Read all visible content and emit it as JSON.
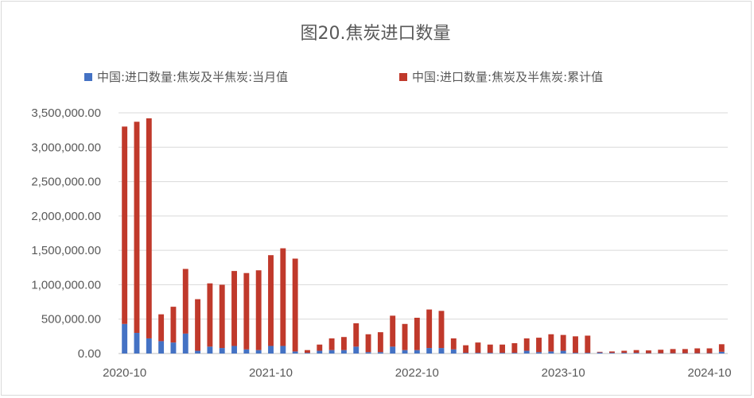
{
  "chart_data": {
    "type": "bar",
    "stacked": true,
    "title": "图20.焦炭进口数量",
    "legend_position": "top",
    "grid": true,
    "ylim": [
      0,
      3500000
    ],
    "y_ticks": [
      "3,500,000.00",
      "3,000,000.00",
      "2,500,000.00",
      "2,000,000.00",
      "1,500,000.00",
      "1,000,000.00",
      "500,000.00",
      "0.00"
    ],
    "y_tick_values": [
      3500000,
      3000000,
      2500000,
      2000000,
      1500000,
      1000000,
      500000,
      0
    ],
    "x_tick_labels": [
      "2020-10",
      "2021-10",
      "2022-10",
      "2023-10",
      "2024-10"
    ],
    "x_tick_indices": [
      0,
      12,
      24,
      36,
      48
    ],
    "categories": [
      "2020-10",
      "2020-11",
      "2020-12",
      "2021-01",
      "2021-02",
      "2021-03",
      "2021-04",
      "2021-05",
      "2021-06",
      "2021-07",
      "2021-08",
      "2021-09",
      "2021-10",
      "2021-11",
      "2021-12",
      "2022-01",
      "2022-02",
      "2022-03",
      "2022-04",
      "2022-05",
      "2022-06",
      "2022-07",
      "2022-08",
      "2022-09",
      "2022-10",
      "2022-11",
      "2022-12",
      "2023-01",
      "2023-02",
      "2023-03",
      "2023-04",
      "2023-05",
      "2023-06",
      "2023-07",
      "2023-08",
      "2023-09",
      "2023-10",
      "2023-11",
      "2023-12",
      "2024-01",
      "2024-02",
      "2024-03",
      "2024-04",
      "2024-05",
      "2024-06",
      "2024-07",
      "2024-08",
      "2024-09",
      "2024-10",
      "2024-11"
    ],
    "series": [
      {
        "name": "中国:进口数量:焦炭及半焦炭:当月值",
        "color": "#4472c4",
        "values": [
          430000,
          300000,
          220000,
          180000,
          160000,
          290000,
          40000,
          100000,
          80000,
          110000,
          60000,
          50000,
          110000,
          110000,
          30000,
          10000,
          40000,
          50000,
          50000,
          100000,
          20000,
          20000,
          100000,
          50000,
          50000,
          80000,
          80000,
          60000,
          10000,
          10000,
          10000,
          10000,
          10000,
          40000,
          20000,
          30000,
          40000,
          10000,
          10000,
          15000,
          10000,
          10000,
          10000,
          5000,
          5000,
          5000,
          5000,
          5000,
          5000,
          25000
        ]
      },
      {
        "name": "中国:进口数量:焦炭及半焦炭:累计值",
        "color": "#c0392b",
        "values": [
          2870000,
          3070000,
          3200000,
          390000,
          520000,
          940000,
          750000,
          920000,
          920000,
          1090000,
          1110000,
          1160000,
          1320000,
          1420000,
          1350000,
          40000,
          90000,
          170000,
          190000,
          340000,
          260000,
          290000,
          450000,
          380000,
          470000,
          560000,
          540000,
          160000,
          110000,
          150000,
          120000,
          120000,
          140000,
          180000,
          210000,
          250000,
          230000,
          240000,
          250000,
          10000,
          20000,
          30000,
          40000,
          40000,
          50000,
          60000,
          60000,
          70000,
          70000,
          110000
        ]
      }
    ]
  }
}
